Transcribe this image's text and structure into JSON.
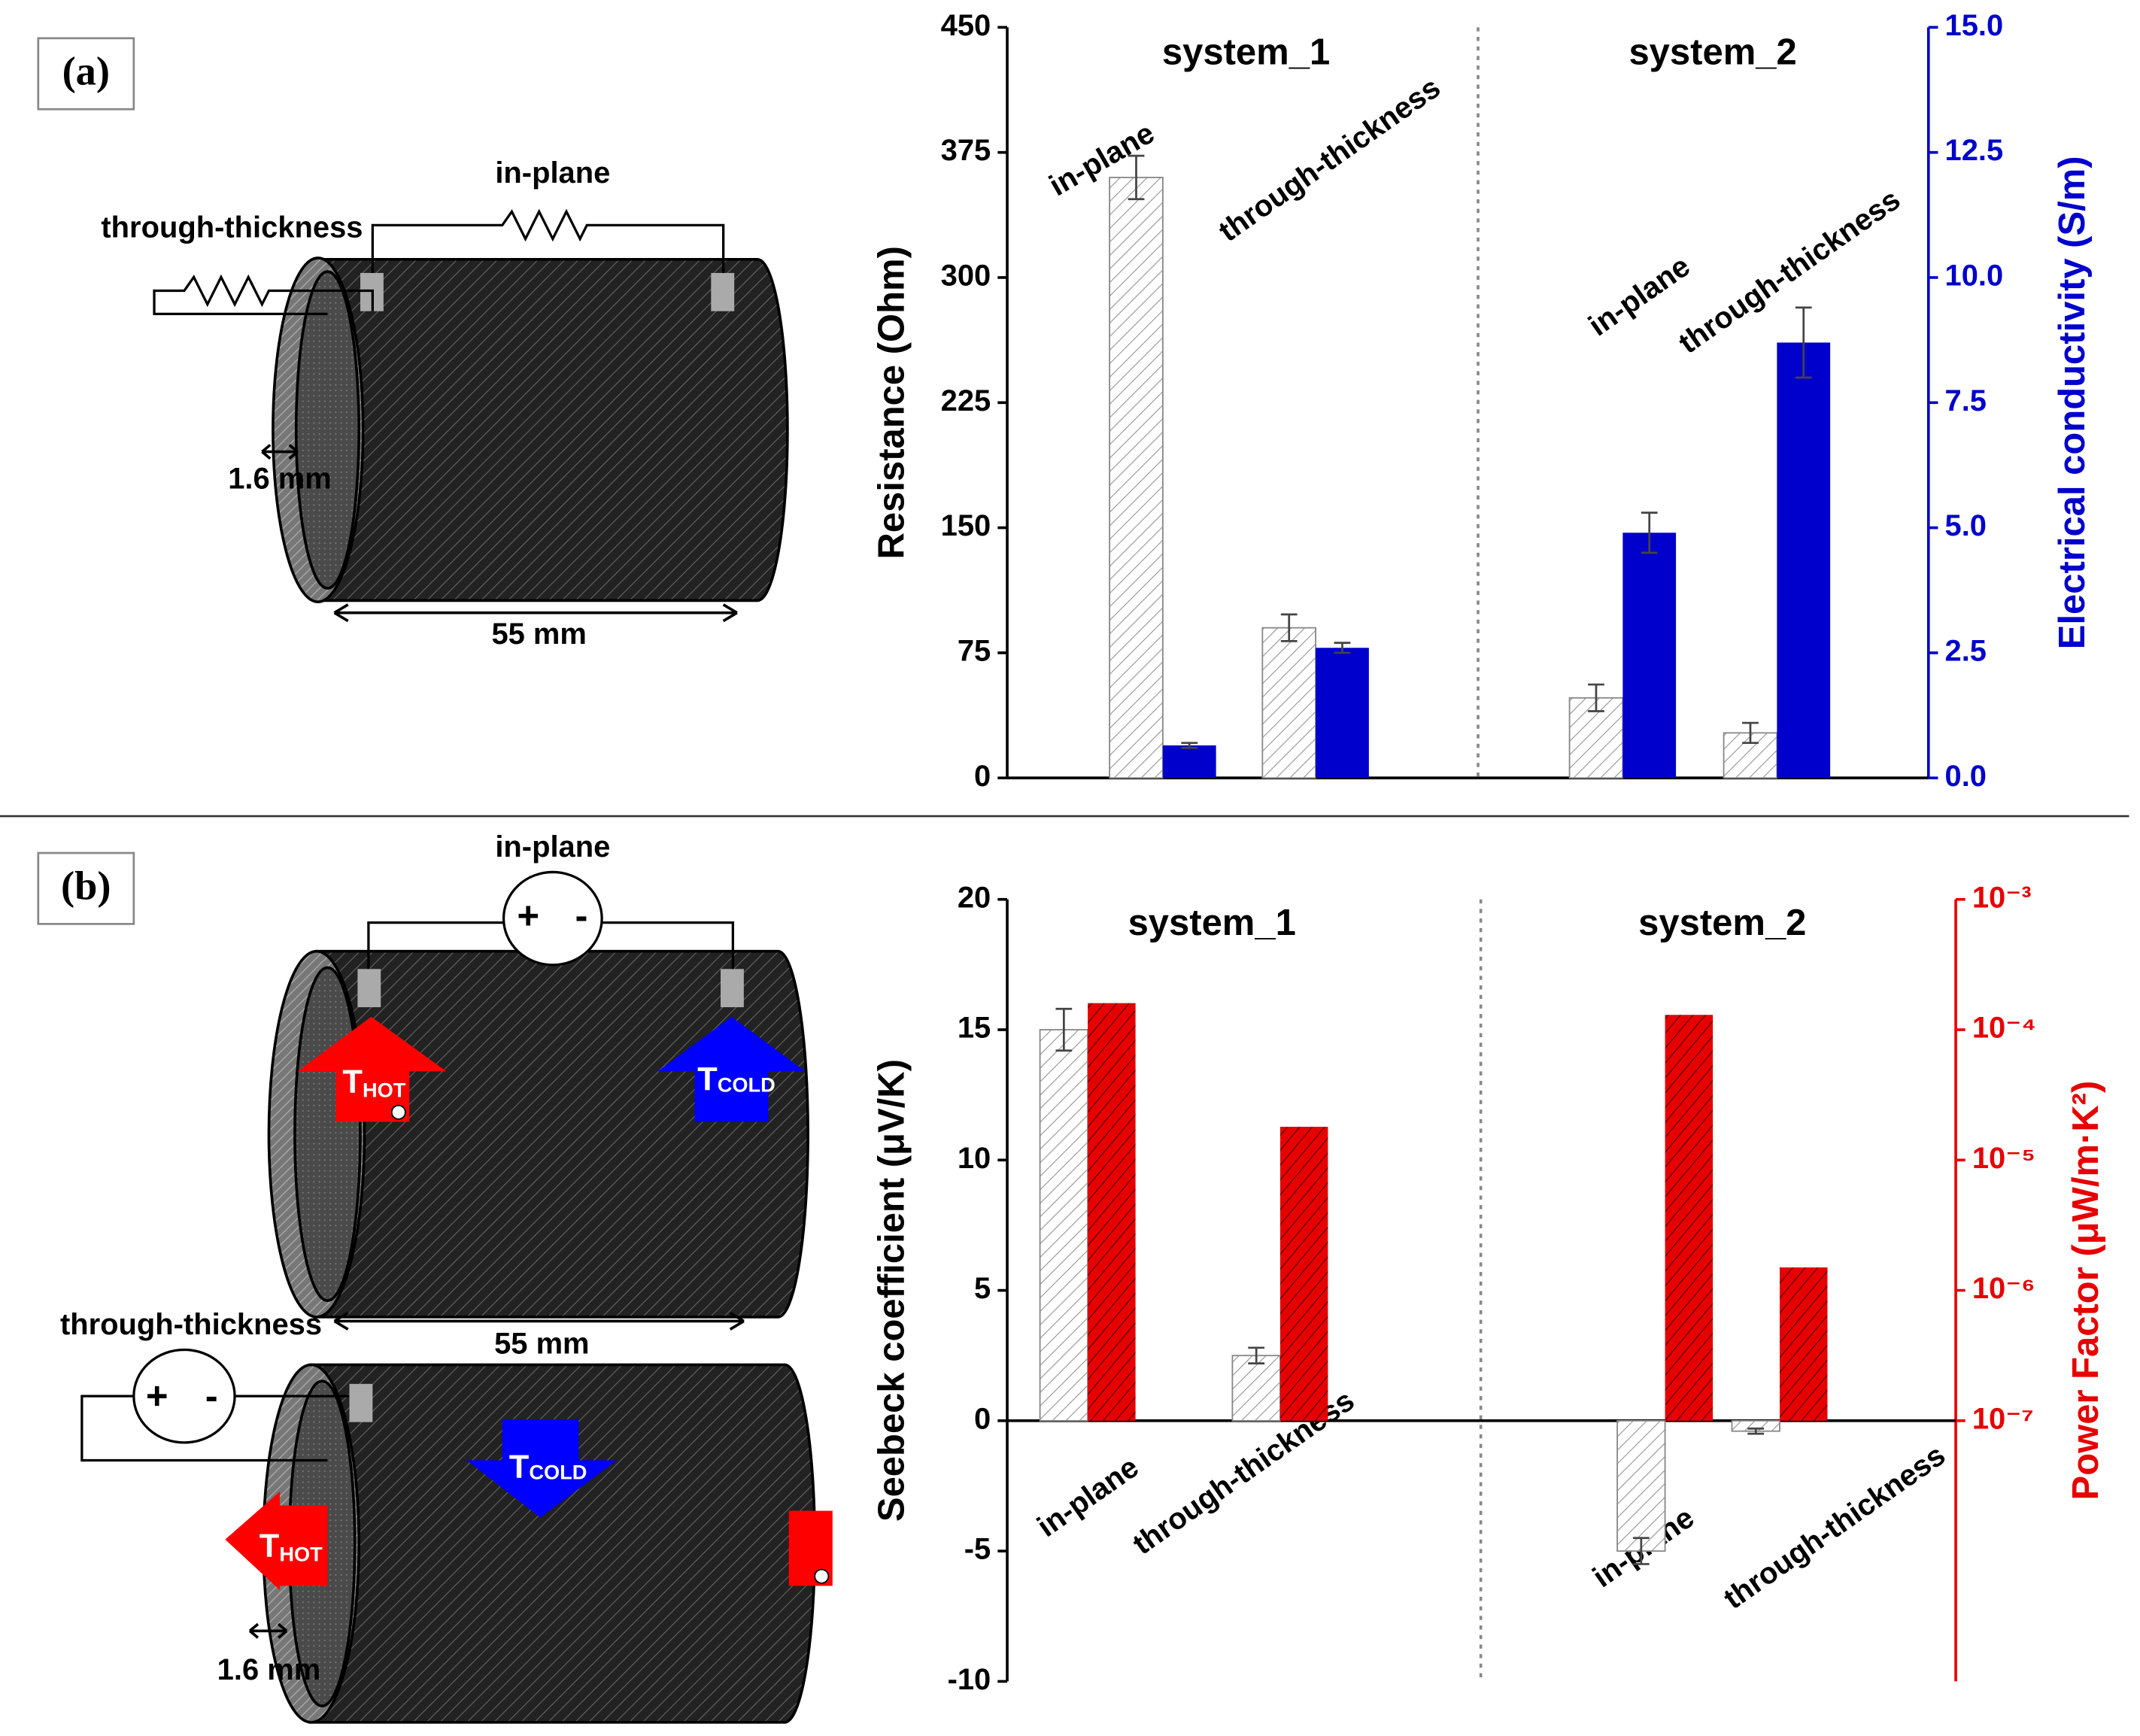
{
  "panel_a": {
    "label": "(a)",
    "through_thickness": "through-thickness",
    "in_plane": "in-plane",
    "thickness": "1.6 mm",
    "length": "55 mm"
  },
  "panel_b": {
    "label": "(b)",
    "in_plane": "in-plane",
    "through_thickness": "through-thickness",
    "plus": "+",
    "minus": "-",
    "length": "55 mm",
    "thickness": "1.6 mm",
    "hot": "T",
    "hot_sub": "HOT",
    "cold": "T",
    "cold_sub": "COLD"
  },
  "chart_data": [
    {
      "type": "bar",
      "annotations": [
        "system_1",
        "system_2"
      ],
      "categories": [
        "in-plane",
        "through-thickness",
        "in-plane",
        "through-thickness"
      ],
      "ylabel": "Resistance (Ohm)",
      "y2label": "Electrical conductivity (S/m)",
      "ylim": [
        0,
        450
      ],
      "yticks": [
        0,
        75,
        150,
        225,
        300,
        375,
        450
      ],
      "y2lim": [
        0,
        15
      ],
      "y2ticks": [
        {
          "value": 0,
          "label": "0.0"
        },
        2.5,
        {
          "value": 5,
          "label": "5.0"
        },
        7.5,
        {
          "value": 10,
          "label": "10.0"
        },
        12.5,
        {
          "value": 15,
          "label": "15.0"
        }
      ],
      "series": [
        {
          "color": "#9a9a9a",
          "pattern": "hatched",
          "axis": "y",
          "values": [
            360,
            90,
            48,
            27
          ],
          "errors": [
            13,
            8,
            8,
            6
          ]
        },
        {
          "color": "#0000cc",
          "pattern": "solid",
          "axis": "y2",
          "values": [
            0.65,
            2.6,
            4.9,
            8.7
          ],
          "errors": [
            0.05,
            0.1,
            0.4,
            0.7
          ]
        }
      ]
    },
    {
      "type": "bar",
      "annotations": [
        "system_1",
        "system_2"
      ],
      "categories": [
        "in-plane",
        "through-thickness",
        "in-plane",
        "through-thickness"
      ],
      "ylabel": "Seebeck coefficient (μV/K)",
      "y2label": "Power Factor (μW/m·K²)",
      "ylim": [
        -10,
        20
      ],
      "yticks": [
        -10,
        -5,
        0,
        5,
        10,
        15,
        20
      ],
      "y2lim": [
        1e-09,
        0.001
      ],
      "y2log": true,
      "y2ticks": [
        {
          "value": 1e-07,
          "label": "10⁻⁷"
        },
        {
          "value": 1e-06,
          "label": "10⁻⁶"
        },
        {
          "value": 1e-05,
          "label": "10⁻⁵"
        },
        {
          "value": 0.0001,
          "label": "10⁻⁴"
        },
        {
          "value": 0.001,
          "label": "10⁻³"
        }
      ],
      "series": [
        {
          "color": "#9a9a9a",
          "pattern": "hatched",
          "axis": "y",
          "values": [
            15,
            2.5,
            -5,
            -0.4
          ],
          "errors": [
            0.8,
            0.3,
            0.5,
            0.1
          ]
        },
        {
          "color": "#e60000",
          "pattern": "filled-hatched",
          "axis": "y2",
          "values": [
            0.00016,
            1.8e-05,
            0.00013,
            1.5e-06
          ]
        }
      ]
    }
  ]
}
